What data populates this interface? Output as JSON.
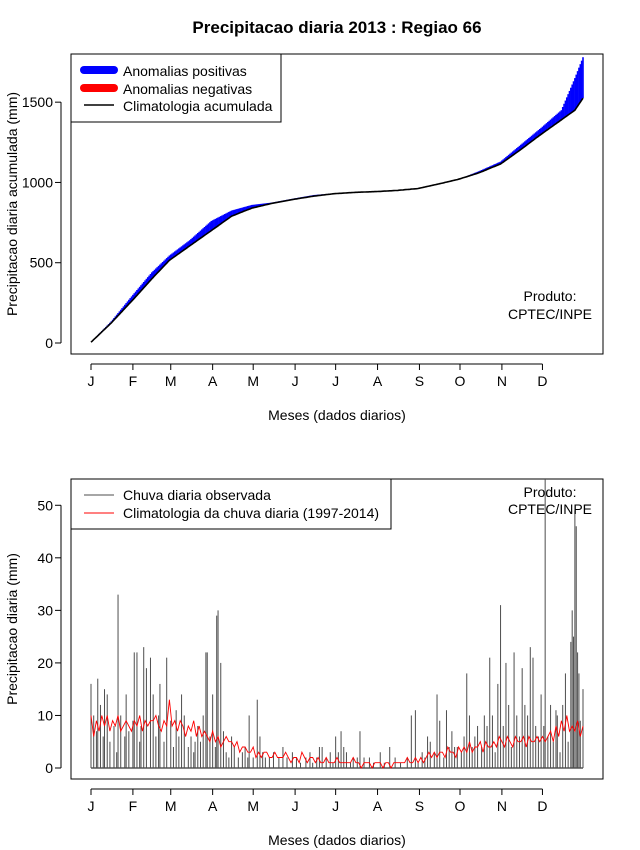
{
  "title": "Precipitacao diaria 2013 : Regiao 66",
  "credit_line1": "Produto:",
  "credit_line2": "CPTEC/INPE",
  "colors": {
    "positive": "#0000ff",
    "negative": "#ff0000",
    "climatology": "#000000",
    "observed": "#4d4d4d",
    "climatology_daily": "#ff0000"
  },
  "chart_data": [
    {
      "type": "area",
      "title": "Precipitacao diaria 2013 : Regiao 66",
      "xlabel": "Meses (dados diarios)",
      "ylabel": "Precipitacao diaria acumulada (mm)",
      "xlim": [
        1,
        365
      ],
      "ylim": [
        0,
        1800
      ],
      "month_ticks": [
        "J",
        "F",
        "M",
        "A",
        "M",
        "J",
        "J",
        "A",
        "S",
        "O",
        "N",
        "D"
      ],
      "month_start_days": [
        1,
        32,
        60,
        91,
        121,
        152,
        182,
        213,
        244,
        274,
        305,
        335
      ],
      "y_ticks": [
        0,
        500,
        1000,
        1500
      ],
      "legend": [
        "Anomalias positivas",
        "Anomalias negativas",
        "Climatologia acumulada"
      ],
      "legend_position": "top-left",
      "days": [
        1,
        16,
        31,
        46,
        59,
        74,
        90,
        105,
        120,
        135,
        151,
        166,
        181,
        196,
        212,
        227,
        243,
        258,
        273,
        288,
        304,
        319,
        334,
        349,
        359,
        365
      ],
      "climatology_cumulative": [
        5,
        125,
        260,
        400,
        515,
        605,
        700,
        790,
        840,
        870,
        895,
        915,
        930,
        938,
        943,
        950,
        962,
        990,
        1020,
        1060,
        1115,
        1205,
        1300,
        1390,
        1450,
        1525
      ],
      "observed_cumulative": [
        5,
        135,
        290,
        440,
        545,
        640,
        760,
        825,
        860,
        875,
        900,
        922,
        932,
        940,
        945,
        952,
        965,
        990,
        1020,
        1070,
        1130,
        1235,
        1340,
        1450,
        1650,
        1780
      ]
    },
    {
      "type": "bar",
      "xlabel": "Meses (dados diarios)",
      "ylabel": "Precipitacao diaria (mm)",
      "xlim": [
        1,
        365
      ],
      "ylim": [
        0,
        55
      ],
      "month_ticks": [
        "J",
        "F",
        "M",
        "A",
        "M",
        "J",
        "J",
        "A",
        "S",
        "O",
        "N",
        "D"
      ],
      "month_start_days": [
        1,
        32,
        60,
        91,
        121,
        152,
        182,
        213,
        244,
        274,
        305,
        335
      ],
      "y_ticks": [
        0,
        10,
        20,
        30,
        40,
        50
      ],
      "legend": [
        "Chuva diaria observada",
        "Climatologia da chuva diaria (1997-2014)"
      ],
      "legend_position": "top-left",
      "series": [
        {
          "name": "Chuva diaria observada",
          "points": [
            [
              1,
              16
            ],
            [
              3,
              10
            ],
            [
              5,
              7
            ],
            [
              6,
              17
            ],
            [
              8,
              12
            ],
            [
              10,
              6
            ],
            [
              11,
              15
            ],
            [
              13,
              14
            ],
            [
              15,
              5
            ],
            [
              18,
              8
            ],
            [
              20,
              3
            ],
            [
              21,
              33
            ],
            [
              23,
              10
            ],
            [
              26,
              6
            ],
            [
              27,
              14
            ],
            [
              29,
              7
            ],
            [
              32,
              9
            ],
            [
              33,
              22
            ],
            [
              35,
              22
            ],
            [
              37,
              5
            ],
            [
              38,
              8
            ],
            [
              40,
              23
            ],
            [
              42,
              19
            ],
            [
              45,
              21
            ],
            [
              47,
              14
            ],
            [
              49,
              6
            ],
            [
              51,
              10
            ],
            [
              52,
              16
            ],
            [
              55,
              5
            ],
            [
              57,
              21
            ],
            [
              60,
              9
            ],
            [
              62,
              4
            ],
            [
              64,
              11
            ],
            [
              66,
              6
            ],
            [
              68,
              14
            ],
            [
              70,
              10
            ],
            [
              73,
              4
            ],
            [
              75,
              6
            ],
            [
              77,
              3
            ],
            [
              78,
              5
            ],
            [
              80,
              8
            ],
            [
              82,
              5
            ],
            [
              84,
              10
            ],
            [
              86,
              22
            ],
            [
              87,
              22
            ],
            [
              89,
              6
            ],
            [
              91,
              14
            ],
            [
              93,
              4
            ],
            [
              94,
              29
            ],
            [
              95,
              30
            ],
            [
              97,
              20
            ],
            [
              99,
              7
            ],
            [
              101,
              3
            ],
            [
              103,
              2
            ],
            [
              105,
              6
            ],
            [
              107,
              4
            ],
            [
              110,
              2
            ],
            [
              113,
              3
            ],
            [
              115,
              4
            ],
            [
              117,
              2
            ],
            [
              118,
              10
            ],
            [
              121,
              2
            ],
            [
              124,
              13
            ],
            [
              126,
              6
            ],
            [
              128,
              3
            ],
            [
              130,
              2
            ],
            [
              133,
              2
            ],
            [
              136,
              3
            ],
            [
              140,
              2
            ],
            [
              143,
              4
            ],
            [
              146,
              2
            ],
            [
              150,
              3
            ],
            [
              153,
              2
            ],
            [
              156,
              1
            ],
            [
              160,
              2
            ],
            [
              163,
              3
            ],
            [
              165,
              1
            ],
            [
              168,
              2
            ],
            [
              170,
              4
            ],
            [
              172,
              4
            ],
            [
              175,
              2
            ],
            [
              178,
              3
            ],
            [
              180,
              1
            ],
            [
              182,
              6
            ],
            [
              184,
              3
            ],
            [
              186,
              7
            ],
            [
              188,
              4
            ],
            [
              190,
              3
            ],
            [
              193,
              1
            ],
            [
              195,
              2
            ],
            [
              198,
              2
            ],
            [
              200,
              7
            ],
            [
              203,
              2
            ],
            [
              207,
              2
            ],
            [
              210,
              1
            ],
            [
              215,
              3
            ],
            [
              218,
              1
            ],
            [
              222,
              4
            ],
            [
              226,
              2
            ],
            [
              230,
              1
            ],
            [
              235,
              2
            ],
            [
              238,
              10
            ],
            [
              241,
              11
            ],
            [
              243,
              1
            ],
            [
              246,
              3
            ],
            [
              248,
              2
            ],
            [
              250,
              6
            ],
            [
              252,
              5
            ],
            [
              255,
              3
            ],
            [
              257,
              14
            ],
            [
              259,
              9
            ],
            [
              262,
              2
            ],
            [
              264,
              11
            ],
            [
              266,
              4
            ],
            [
              268,
              7
            ],
            [
              270,
              4
            ],
            [
              272,
              4
            ],
            [
              275,
              3
            ],
            [
              277,
              6
            ],
            [
              279,
              18
            ],
            [
              281,
              10
            ],
            [
              283,
              4
            ],
            [
              285,
              6
            ],
            [
              287,
              8
            ],
            [
              290,
              4
            ],
            [
              292,
              10
            ],
            [
              294,
              8
            ],
            [
              296,
              21
            ],
            [
              298,
              10
            ],
            [
              300,
              3
            ],
            [
              302,
              16
            ],
            [
              304,
              31
            ],
            [
              306,
              8
            ],
            [
              308,
              20
            ],
            [
              310,
              12
            ],
            [
              312,
              4
            ],
            [
              314,
              22
            ],
            [
              316,
              10
            ],
            [
              318,
              6
            ],
            [
              320,
              19
            ],
            [
              322,
              12
            ],
            [
              324,
              10
            ],
            [
              326,
              23
            ],
            [
              328,
              21
            ],
            [
              330,
              8
            ],
            [
              332,
              6
            ],
            [
              334,
              14
            ],
            [
              336,
              8
            ],
            [
              337,
              55
            ],
            [
              339,
              6
            ],
            [
              341,
              12
            ],
            [
              343,
              5
            ],
            [
              345,
              11
            ],
            [
              346,
              10
            ],
            [
              348,
              3
            ],
            [
              350,
              12
            ],
            [
              352,
              18
            ],
            [
              354,
              5
            ],
            [
              356,
              24
            ],
            [
              357,
              30
            ],
            [
              358,
              25
            ],
            [
              359,
              49
            ],
            [
              360,
              46
            ],
            [
              361,
              22
            ],
            [
              362,
              18
            ],
            [
              363,
              9
            ],
            [
              365,
              15
            ]
          ]
        },
        {
          "name": "Climatologia da chuva diaria (1997-2014)",
          "days": [
            1,
            3,
            5,
            7,
            9,
            11,
            13,
            15,
            17,
            19,
            21,
            23,
            25,
            27,
            29,
            31,
            33,
            35,
            37,
            39,
            41,
            43,
            45,
            47,
            49,
            51,
            53,
            55,
            57,
            59,
            61,
            63,
            65,
            67,
            69,
            71,
            73,
            75,
            77,
            79,
            81,
            83,
            85,
            87,
            89,
            91,
            93,
            95,
            97,
            99,
            101,
            103,
            105,
            107,
            109,
            111,
            113,
            115,
            117,
            119,
            121,
            123,
            125,
            127,
            129,
            131,
            133,
            135,
            137,
            139,
            141,
            143,
            145,
            147,
            149,
            151,
            153,
            155,
            157,
            159,
            161,
            163,
            165,
            167,
            169,
            171,
            173,
            175,
            177,
            179,
            181,
            183,
            185,
            187,
            189,
            191,
            193,
            195,
            197,
            199,
            201,
            203,
            205,
            207,
            209,
            211,
            213,
            215,
            217,
            219,
            221,
            223,
            225,
            227,
            229,
            231,
            233,
            235,
            237,
            239,
            241,
            243,
            245,
            247,
            249,
            251,
            253,
            255,
            257,
            259,
            261,
            263,
            265,
            267,
            269,
            271,
            273,
            275,
            277,
            279,
            281,
            283,
            285,
            287,
            289,
            291,
            293,
            295,
            297,
            299,
            301,
            303,
            305,
            307,
            309,
            311,
            313,
            315,
            317,
            319,
            321,
            323,
            325,
            327,
            329,
            331,
            333,
            335,
            337,
            339,
            341,
            343,
            345,
            347,
            349,
            351,
            353,
            355,
            357,
            359,
            361,
            363,
            365
          ],
          "values": [
            10,
            6,
            9,
            7,
            10,
            8,
            10,
            7,
            9,
            8,
            10,
            7,
            8,
            9,
            8,
            7,
            9,
            8,
            10,
            7,
            9,
            8,
            9,
            9,
            10,
            8,
            7,
            9,
            8,
            13,
            8,
            9,
            7,
            9,
            8,
            6,
            8,
            7,
            9,
            6,
            8,
            6,
            7,
            6,
            5,
            7,
            5,
            6,
            4,
            5,
            6,
            5,
            5,
            4,
            5,
            3,
            4,
            4,
            3,
            3,
            4,
            2,
            3,
            2,
            3,
            3,
            2,
            2,
            3,
            2,
            2,
            2,
            3,
            2,
            1,
            2,
            2,
            1,
            3,
            2,
            1,
            2,
            2,
            1,
            2,
            1,
            1,
            2,
            1,
            1,
            1,
            2,
            1,
            1,
            1,
            1,
            1,
            2,
            1,
            1,
            0,
            1,
            1,
            1,
            0,
            1,
            1,
            1,
            0,
            1,
            1,
            0,
            1,
            1,
            1,
            1,
            1,
            2,
            1,
            1,
            2,
            1,
            2,
            1,
            2,
            3,
            2,
            3,
            2,
            3,
            3,
            2,
            4,
            3,
            3,
            2,
            4,
            3,
            4,
            3,
            5,
            3,
            4,
            4,
            5,
            3,
            5,
            4,
            4,
            5,
            4,
            6,
            5,
            4,
            6,
            5,
            4,
            6,
            5,
            5,
            6,
            4,
            6,
            5,
            5,
            6,
            5,
            6,
            5,
            6,
            7,
            5,
            8,
            6,
            9,
            7,
            10,
            7,
            8,
            7,
            9,
            6,
            8
          ]
        }
      ]
    }
  ]
}
